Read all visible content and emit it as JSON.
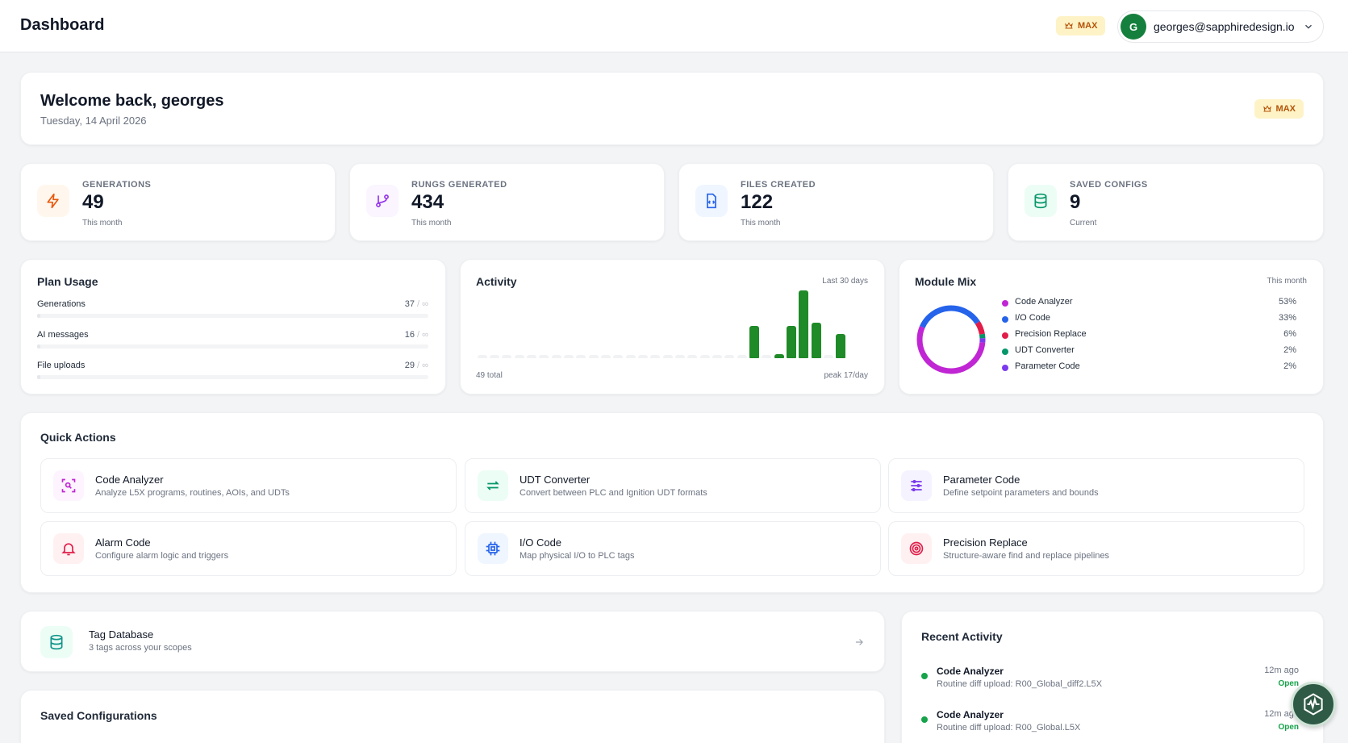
{
  "header": {
    "title": "Dashboard",
    "plan_badge": "MAX",
    "user_initial": "G",
    "user_email": "georges@sapphiredesign.io"
  },
  "welcome": {
    "heading": "Welcome back, georges",
    "date": "Tuesday, 14 April 2026",
    "plan_badge": "MAX"
  },
  "stats": [
    {
      "label": "GENERATIONS",
      "value": "49",
      "sub": "This month",
      "icon": "lightning-icon",
      "color": "#ea580c"
    },
    {
      "label": "RUNGS GENERATED",
      "value": "434",
      "sub": "This month",
      "icon": "branch-icon",
      "color": "#9333ea"
    },
    {
      "label": "FILES CREATED",
      "value": "122",
      "sub": "This month",
      "icon": "file-code-icon",
      "color": "#2563eb"
    },
    {
      "label": "SAVED CONFIGS",
      "value": "9",
      "sub": "Current",
      "icon": "database-icon",
      "color": "#059669"
    }
  ],
  "plan_usage": {
    "title": "Plan Usage",
    "rows": [
      {
        "name": "Generations",
        "used": "37",
        "limit": "/ ∞"
      },
      {
        "name": "AI messages",
        "used": "16",
        "limit": "/ ∞"
      },
      {
        "name": "File uploads",
        "used": "29",
        "limit": "/ ∞"
      }
    ]
  },
  "activity": {
    "title": "Activity",
    "range": "Last 30 days",
    "total": "49 total",
    "peak": "peak 17/day",
    "bar_color": "#1f8a28",
    "empty_color": "#f1f2f4"
  },
  "chart_data": {
    "type": "bar",
    "title": "Activity",
    "x": [
      1,
      2,
      3,
      4,
      5,
      6,
      7,
      8,
      9,
      10,
      11,
      12,
      13,
      14,
      15,
      16,
      17,
      18,
      19,
      20,
      21,
      22,
      23,
      24,
      25,
      26,
      27,
      28,
      29,
      30
    ],
    "values": [
      0,
      0,
      0,
      0,
      0,
      0,
      0,
      0,
      0,
      0,
      0,
      0,
      0,
      0,
      0,
      0,
      0,
      0,
      0,
      0,
      0,
      0,
      8,
      0,
      1,
      8,
      17,
      9,
      0,
      6
    ],
    "ylim": [
      0,
      17
    ],
    "grid": false
  },
  "module_mix": {
    "title": "Module Mix",
    "range": "This month",
    "items": [
      {
        "name": "Code Analyzer",
        "pct": "53%",
        "value": 53,
        "color": "#c026d3"
      },
      {
        "name": "I/O Code",
        "pct": "33%",
        "value": 33,
        "color": "#2563eb"
      },
      {
        "name": "Precision Replace",
        "pct": "6%",
        "value": 6,
        "color": "#e11d48"
      },
      {
        "name": "UDT Converter",
        "pct": "2%",
        "value": 2,
        "color": "#059669"
      },
      {
        "name": "Parameter Code",
        "pct": "2%",
        "value": 2,
        "color": "#7c3aed"
      }
    ]
  },
  "quick_actions": {
    "title": "Quick Actions",
    "items": [
      {
        "name": "Code Analyzer",
        "desc": "Analyze L5X programs, routines, AOIs, and UDTs",
        "icon": "scan-search-icon",
        "color": "#c026d3",
        "bg": "#fdf4ff"
      },
      {
        "name": "UDT Converter",
        "desc": "Convert between PLC and Ignition UDT formats",
        "icon": "swap-arrows-icon",
        "color": "#059669",
        "bg": "#ecfdf5"
      },
      {
        "name": "Parameter Code",
        "desc": "Define setpoint parameters and bounds",
        "icon": "sliders-icon",
        "color": "#7c3aed",
        "bg": "#f5f3ff"
      },
      {
        "name": "Alarm Code",
        "desc": "Configure alarm logic and triggers",
        "icon": "bell-icon",
        "color": "#e11d48",
        "bg": "#fff1f2"
      },
      {
        "name": "I/O Code",
        "desc": "Map physical I/O to PLC tags",
        "icon": "chip-icon",
        "color": "#2563eb",
        "bg": "#eff6ff"
      },
      {
        "name": "Precision Replace",
        "desc": "Structure-aware find and replace pipelines",
        "icon": "target-icon",
        "color": "#e11d48",
        "bg": "#fff1f2"
      }
    ]
  },
  "tag_database": {
    "title": "Tag Database",
    "sub": "3 tags across your scopes"
  },
  "saved_configs": {
    "title": "Saved Configurations"
  },
  "recent_activity": {
    "title": "Recent Activity",
    "items": [
      {
        "name": "Code Analyzer",
        "desc": "Routine diff upload: R00_Global_diff2.L5X",
        "time": "12m ago",
        "status": "Open"
      },
      {
        "name": "Code Analyzer",
        "desc": "Routine diff upload: R00_Global.L5X",
        "time": "12m ago",
        "status": "Open"
      }
    ]
  }
}
